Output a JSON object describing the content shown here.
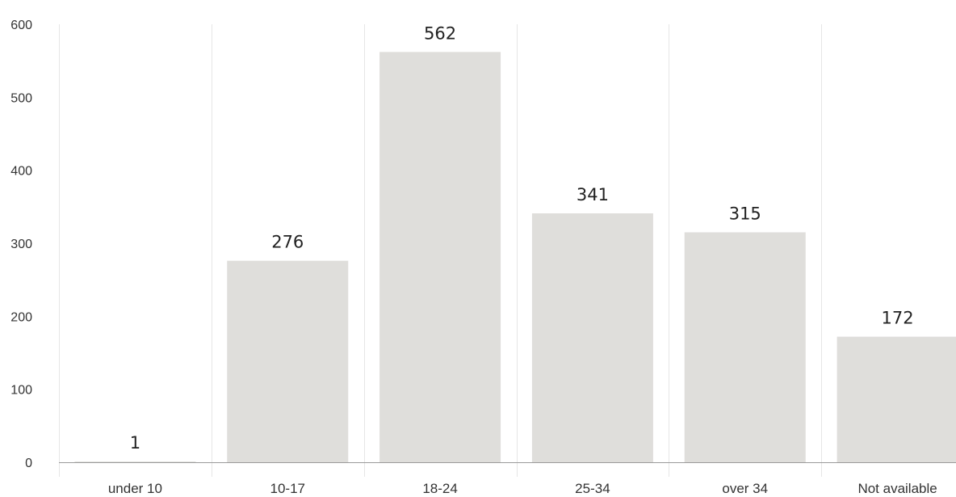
{
  "colors": {
    "bar": "#dfdedb",
    "grid": "#e6e6e6",
    "axis": "#9a9a9a",
    "text": "#333333"
  },
  "chart_data": {
    "type": "bar",
    "categories": [
      "under 10",
      "10-17",
      "18-24",
      "25-34",
      "over 34",
      "Not available"
    ],
    "values": [
      1,
      276,
      562,
      341,
      315,
      172
    ],
    "data_labels": [
      "1",
      "276",
      "562",
      "341",
      "315",
      "172"
    ],
    "title": "",
    "xlabel": "",
    "ylabel": "",
    "ylim": [
      0,
      600
    ],
    "yticks": [
      0,
      100,
      200,
      300,
      400,
      500,
      600
    ],
    "ytick_labels": [
      "0",
      "100",
      "200",
      "300",
      "400",
      "500",
      "600"
    ],
    "grid": "vertical separators between categories",
    "legend": "none"
  }
}
